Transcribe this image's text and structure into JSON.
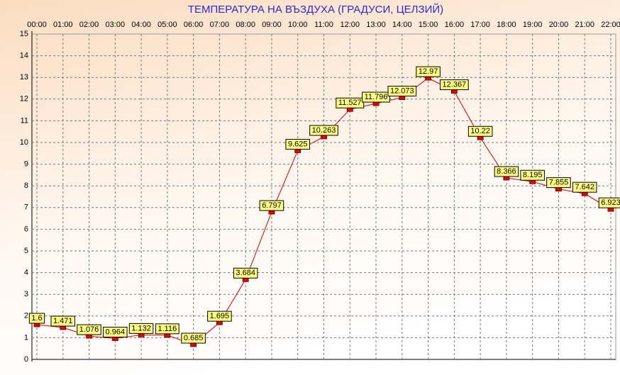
{
  "chart_data": {
    "type": "line",
    "title": "ТЕМПЕРАТУРА НА ВЪЗДУХА  (ГРАДУСИ, ЦЕЛЗИЙ)",
    "categories": [
      "00:00",
      "01:00",
      "02:00",
      "03:00",
      "04:00",
      "05:00",
      "06:00",
      "07:00",
      "08:00",
      "09:00",
      "10:00",
      "11:00",
      "12:00",
      "13:00",
      "14:00",
      "15:00",
      "16:00",
      "17:00",
      "18:00",
      "19:00",
      "20:00",
      "21:00",
      "22:00"
    ],
    "values": [
      1.6,
      1.471,
      1.076,
      0.964,
      1.132,
      1.116,
      0.685,
      1.695,
      3.684,
      6.797,
      9.625,
      10.263,
      11.527,
      11.796,
      12.073,
      12.97,
      12.367,
      10.22,
      8.366,
      8.195,
      7.855,
      7.642,
      6.923
    ],
    "color": "#e00000",
    "ylim": [
      0,
      15
    ],
    "yticks": [
      0,
      1,
      2,
      3,
      4,
      5,
      6,
      7,
      8,
      9,
      10,
      11,
      12,
      13,
      14,
      15
    ],
    "grid": true
  }
}
